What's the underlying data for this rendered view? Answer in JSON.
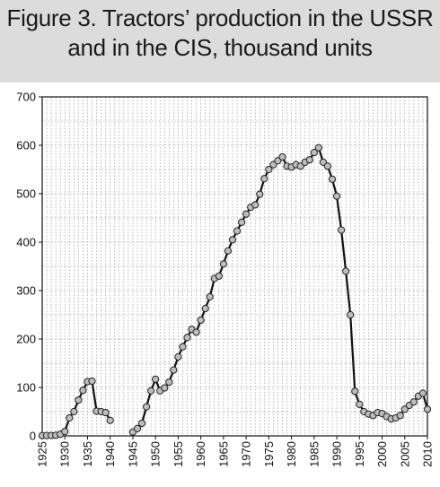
{
  "chart_data": {
    "type": "line",
    "title": "Figure 3. Tractors’ production in the USSR and in the CIS, thousand units",
    "xlabel": "",
    "ylabel": "",
    "xlim": [
      1925,
      2010
    ],
    "ylim": [
      0,
      700
    ],
    "x_ticks": [
      1925,
      1930,
      1935,
      1940,
      1945,
      1950,
      1955,
      1960,
      1965,
      1970,
      1975,
      1980,
      1985,
      1990,
      1995,
      2000,
      2005,
      2010
    ],
    "y_ticks": [
      0,
      100,
      200,
      300,
      400,
      500,
      600,
      700
    ],
    "grid": true,
    "legend": "none",
    "colors": {
      "line": "#111111",
      "marker_fill": "#bdbdbd",
      "marker_edge": "#222222",
      "grid": "#888888"
    },
    "series": [
      {
        "segments": [
          {
            "x": [
              1925,
              1926,
              1927,
              1928,
              1929,
              1930,
              1931,
              1932,
              1933,
              1934,
              1935,
              1936,
              1937,
              1938,
              1939,
              1940
            ],
            "y": [
              0.5,
              0.7,
              0.8,
              1.3,
              3.3,
              9,
              37,
              50,
              74,
              94,
              112,
              113,
              51,
              50,
              48,
              32
            ]
          },
          {
            "x": [
              1945,
              1946,
              1947,
              1948,
              1949,
              1950,
              1951,
              1952,
              1953,
              1954,
              1955,
              1956,
              1957,
              1958,
              1959,
              1960,
              1961,
              1962,
              1963,
              1964,
              1965,
              1966,
              1967,
              1968,
              1969,
              1970,
              1971,
              1972,
              1973,
              1974,
              1975,
              1976,
              1977,
              1978,
              1979,
              1980,
              1981,
              1982,
              1983,
              1984,
              1985,
              1986,
              1987,
              1988,
              1989,
              1990,
              1991,
              1992,
              1993,
              1994,
              1995,
              1996,
              1997,
              1998,
              1999,
              2000,
              2001,
              2002,
              2003,
              2004,
              2005,
              2006,
              2007,
              2008,
              2009,
              2010
            ],
            "y": [
              8,
              15,
              26,
              60,
              93,
              117,
              93,
              99,
              111,
              136,
              163,
              184,
              203,
              220,
              214,
              239,
              263,
              287,
              325,
              330,
              355,
              382,
              405,
              423,
              441,
              458,
              472,
              477,
              499,
              531,
              550,
              560,
              568,
              576,
              557,
              555,
              560,
              557,
              565,
              570,
              585,
              595,
              565,
              557,
              530,
              495,
              425,
              340,
              250,
              92,
              65,
              50,
              45,
              42,
              48,
              46,
              40,
              35,
              37,
              42,
              55,
              63,
              70,
              82,
              88,
              55
            ]
          }
        ]
      }
    ]
  }
}
